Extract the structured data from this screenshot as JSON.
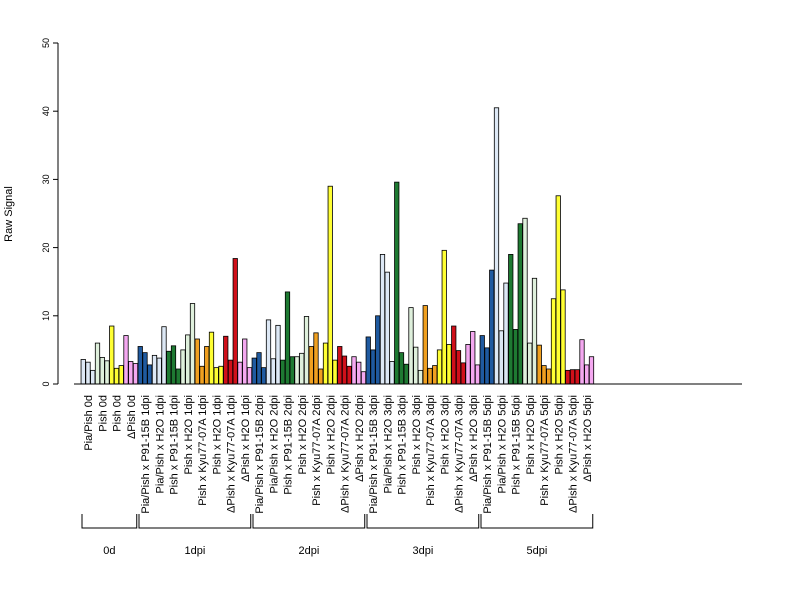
{
  "chart_data": {
    "type": "bar",
    "title": "",
    "xlabel": "",
    "ylabel": "Raw Signal",
    "ylim": [
      0,
      50
    ],
    "yticks": [
      0,
      10,
      20,
      30,
      40,
      50
    ],
    "grid": false,
    "legend": "none",
    "categories": [
      {
        "label": "Pia/Pish 0d",
        "values": [
          3.6,
          3.2,
          2.0
        ],
        "color": "#dde8f5"
      },
      {
        "label": "Pish 0d",
        "values": [
          6.0,
          3.9,
          3.4
        ],
        "color": "#dff0dc"
      },
      {
        "label": "Pish 0d",
        "values": [
          8.5,
          2.3,
          2.7
        ],
        "color": "#ffff33"
      },
      {
        "label": "ΔPish 0d",
        "values": [
          7.1,
          3.3,
          3.0
        ],
        "color": "#f4a8f0"
      },
      {
        "label": "Pia/Pish x P91-15B 1dpi",
        "values": [
          5.5,
          4.6,
          2.8
        ],
        "color": "#1f5aa0"
      },
      {
        "label": "Pia/Pish x H2O 1dpi",
        "values": [
          4.2,
          3.8,
          8.4
        ],
        "color": "#dde8f5"
      },
      {
        "label": "Pish x P91-15B 1dpi",
        "values": [
          4.8,
          5.6,
          2.2
        ],
        "color": "#1e7a32"
      },
      {
        "label": "Pish x H2O 1dpi",
        "values": [
          5.0,
          7.2,
          11.8
        ],
        "color": "#dff0dc"
      },
      {
        "label": "Pish x Kyu77-07A 1dpi",
        "values": [
          6.6,
          2.6,
          5.5
        ],
        "color": "#f0a020"
      },
      {
        "label": "Pish x H2O 1dpi",
        "values": [
          7.6,
          2.4,
          2.6
        ],
        "color": "#ffff33"
      },
      {
        "label": "ΔPish x Kyu77-07A 1dpi",
        "values": [
          7.0,
          3.5,
          18.4
        ],
        "color": "#d0101a"
      },
      {
        "label": "ΔPish x H2O 1dpi",
        "values": [
          3.2,
          6.6,
          2.4
        ],
        "color": "#f4a8f0"
      },
      {
        "label": "Pia/Pish x P91-15B 2dpi",
        "values": [
          3.8,
          4.6,
          2.4
        ],
        "color": "#1f5aa0"
      },
      {
        "label": "Pia/Pish x H2O 2dpi",
        "values": [
          9.4,
          3.7,
          8.6
        ],
        "color": "#dde8f5"
      },
      {
        "label": "Pish x P91-15B 2dpi",
        "values": [
          3.5,
          13.5,
          4.0
        ],
        "color": "#1e7a32"
      },
      {
        "label": "Pish x H2O 2dpi",
        "values": [
          4.0,
          4.5,
          9.9
        ],
        "color": "#dff0dc"
      },
      {
        "label": "Pish x Kyu77-07A 2dpi",
        "values": [
          5.5,
          7.5,
          2.2
        ],
        "color": "#f0a020"
      },
      {
        "label": "Pish x H2O 2dpi",
        "values": [
          6.0,
          29.0,
          3.5
        ],
        "color": "#ffff33"
      },
      {
        "label": "ΔPish x Kyu77-07A 2dpi",
        "values": [
          5.5,
          4.1,
          2.6
        ],
        "color": "#d0101a"
      },
      {
        "label": "ΔPish x H2O 2dpi",
        "values": [
          4.0,
          3.2,
          1.8
        ],
        "color": "#f4a8f0"
      },
      {
        "label": "Pia/Pish x P91-15B 3dpi",
        "values": [
          6.9,
          5.0,
          10.0
        ],
        "color": "#1f5aa0"
      },
      {
        "label": "Pia/Pish x H2O 3dpi",
        "values": [
          19.0,
          16.4,
          3.3
        ],
        "color": "#dde8f5"
      },
      {
        "label": "Pish x P91-15B 3dpi",
        "values": [
          29.6,
          4.6,
          2.9
        ],
        "color": "#1e7a32"
      },
      {
        "label": "Pish x H2O 3dpi",
        "values": [
          11.2,
          5.4,
          2.0
        ],
        "color": "#dff0dc"
      },
      {
        "label": "Pish x Kyu77-07A 3dpi",
        "values": [
          11.5,
          2.3,
          2.7
        ],
        "color": "#f0a020"
      },
      {
        "label": "Pish x H2O 3dpi",
        "values": [
          5.0,
          19.6,
          5.8
        ],
        "color": "#ffff33"
      },
      {
        "label": "ΔPish x Kyu77-07A 3dpi",
        "values": [
          8.5,
          4.9,
          3.1
        ],
        "color": "#d0101a"
      },
      {
        "label": "ΔPish x H2O 3dpi",
        "values": [
          5.8,
          7.7,
          2.8
        ],
        "color": "#f4a8f0"
      },
      {
        "label": "Pia/Pish x P91-15B 5dpi",
        "values": [
          7.1,
          5.3,
          16.7
        ],
        "color": "#1f5aa0"
      },
      {
        "label": "Pia/Pish x H2O 5dpi",
        "values": [
          40.5,
          7.8,
          14.8
        ],
        "color": "#dde8f5"
      },
      {
        "label": "Pish x P91-15B 5dpi",
        "values": [
          19.0,
          8.0,
          23.5
        ],
        "color": "#1e7a32"
      },
      {
        "label": "Pish x H2O 5dpi",
        "values": [
          24.3,
          6.0,
          15.5
        ],
        "color": "#dff0dc"
      },
      {
        "label": "Pish x Kyu77-07A 5dpi",
        "values": [
          5.7,
          2.7,
          2.2
        ],
        "color": "#f0a020"
      },
      {
        "label": "Pish x H2O 5dpi",
        "values": [
          12.5,
          27.6,
          13.8
        ],
        "color": "#ffff33"
      },
      {
        "label": "ΔPish x Kyu77-07A 5dpi",
        "values": [
          2.0,
          2.1,
          2.1
        ],
        "color": "#d0101a"
      },
      {
        "label": "ΔPish x H2O 5dpi",
        "values": [
          6.5,
          2.8,
          4.0
        ],
        "color": "#f4a8f0"
      }
    ],
    "groups": [
      {
        "label": "0d",
        "first": 0,
        "last": 3
      },
      {
        "label": "1dpi",
        "first": 4,
        "last": 11
      },
      {
        "label": "2dpi",
        "first": 12,
        "last": 19
      },
      {
        "label": "3dpi",
        "first": 20,
        "last": 27
      },
      {
        "label": "5dpi",
        "first": 28,
        "last": 35
      }
    ]
  }
}
